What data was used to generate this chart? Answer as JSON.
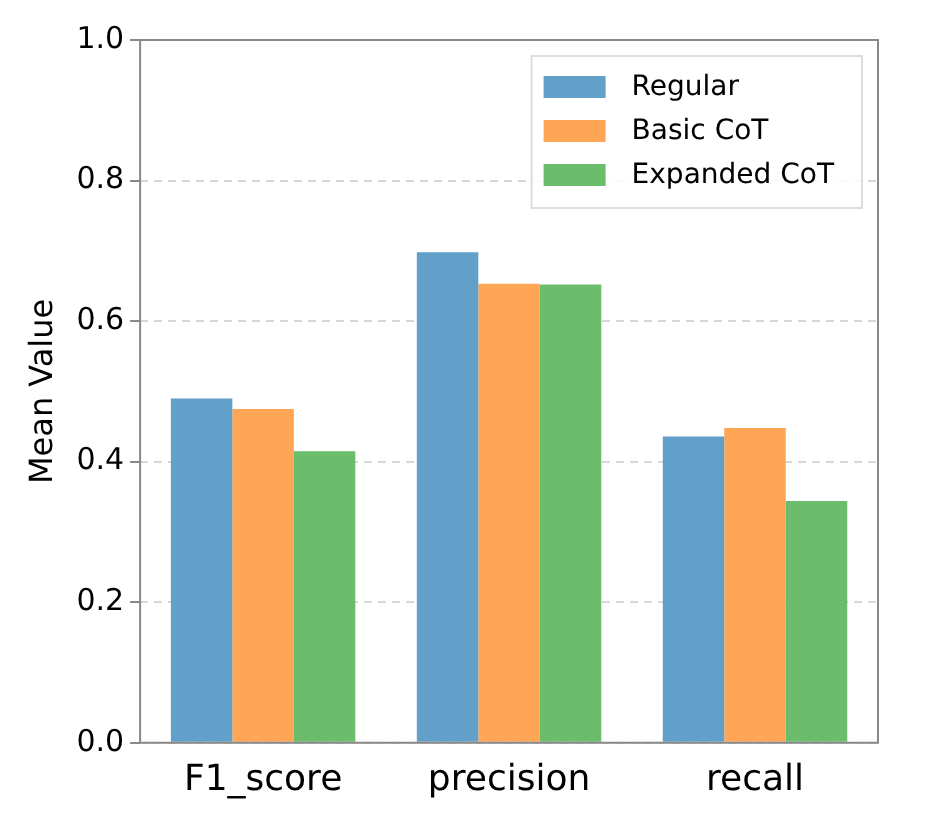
{
  "chart_data": {
    "type": "bar",
    "ylabel": "Mean Value",
    "categories": [
      "F1_score",
      "precision",
      "recall"
    ],
    "series": [
      {
        "name": "Regular",
        "color": "#62a0ca",
        "values": [
          0.49,
          0.698,
          0.436
        ]
      },
      {
        "name": "Basic CoT",
        "color": "#ffa556",
        "values": [
          0.475,
          0.653,
          0.448
        ]
      },
      {
        "name": "Expanded CoT",
        "color": "#6bbc6b",
        "values": [
          0.415,
          0.652,
          0.344
        ]
      }
    ],
    "ylim": [
      0,
      1
    ],
    "yticks": [
      {
        "value": 0,
        "label": "0.0"
      },
      {
        "value": 0.2,
        "label": "0.2"
      },
      {
        "value": 0.4,
        "label": "0.4"
      },
      {
        "value": 0.6,
        "label": "0.6"
      },
      {
        "value": 0.8,
        "label": "0.8"
      },
      {
        "value": 1,
        "label": "1.0"
      }
    ],
    "grid": "y",
    "legend": "top right"
  }
}
